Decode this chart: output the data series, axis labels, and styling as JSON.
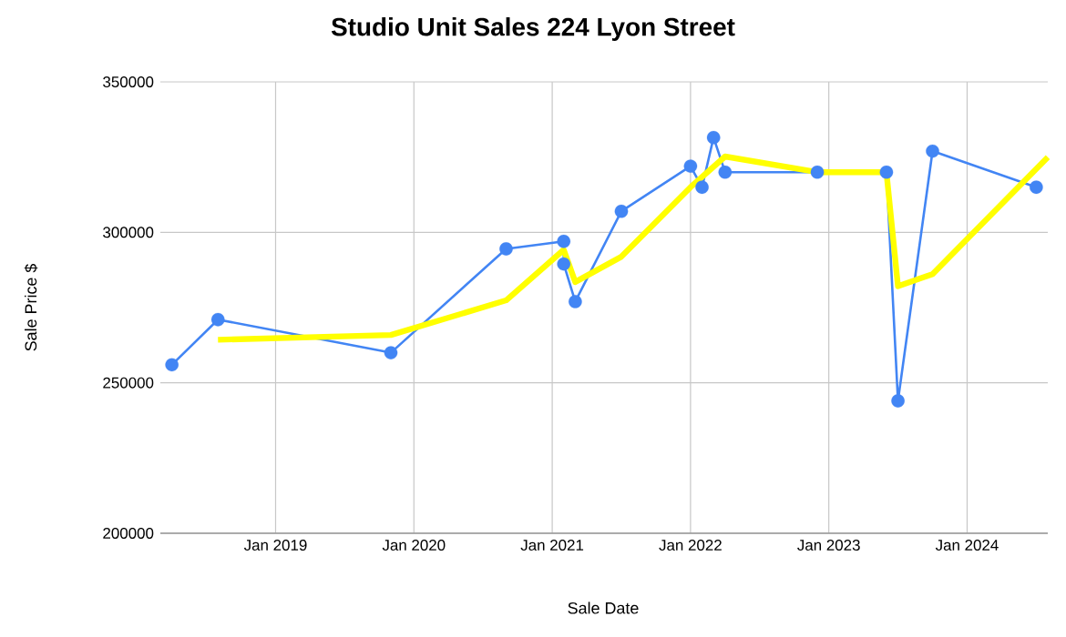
{
  "chart_data": {
    "type": "line",
    "title": "Studio Unit Sales 224 Lyon Street",
    "xlabel": "Sale Date",
    "ylabel": "Sale Price $",
    "xlim": [
      "2018-03",
      "2024-08"
    ],
    "xticks": [
      {
        "value": "2019-01",
        "label": "Jan 2019"
      },
      {
        "value": "2020-01",
        "label": "Jan 2020"
      },
      {
        "value": "2021-01",
        "label": "Jan 2021"
      },
      {
        "value": "2022-01",
        "label": "Jan 2022"
      },
      {
        "value": "2023-01",
        "label": "Jan 2023"
      },
      {
        "value": "2024-01",
        "label": "Jan 2024"
      }
    ],
    "ylim": [
      200000,
      350000
    ],
    "yticks": [
      200000,
      250000,
      300000,
      350000
    ],
    "grid": true,
    "series": [
      {
        "color": "#4285f4",
        "marker": "circle",
        "x": [
          "2018-04",
          "2018-08",
          "2019-11",
          "2020-09",
          "2021-02",
          "2021-02",
          "2021-03",
          "2021-07",
          "2022-01",
          "2022-02",
          "2022-03",
          "2022-04",
          "2022-12",
          "2023-06",
          "2023-07",
          "2023-10",
          "2024-07"
        ],
        "values": [
          256000,
          271000,
          260000,
          294500,
          297000,
          289500,
          277000,
          307000,
          322000,
          315000,
          331500,
          320000,
          320000,
          320000,
          244000,
          327000,
          315000
        ]
      },
      {
        "color": "#ffff00",
        "marker": "none",
        "x": [
          "2018-08",
          "2019-11",
          "2020-09",
          "2021-02",
          "2021-03",
          "2021-07",
          "2022-01",
          "2022-04",
          "2022-12",
          "2023-06",
          "2023-07",
          "2023-10",
          "2024-08"
        ],
        "values": [
          264300,
          265900,
          277400,
          294200,
          283500,
          291900,
          315000,
          325200,
          320000,
          320000,
          282100,
          286100,
          325000
        ]
      }
    ]
  }
}
